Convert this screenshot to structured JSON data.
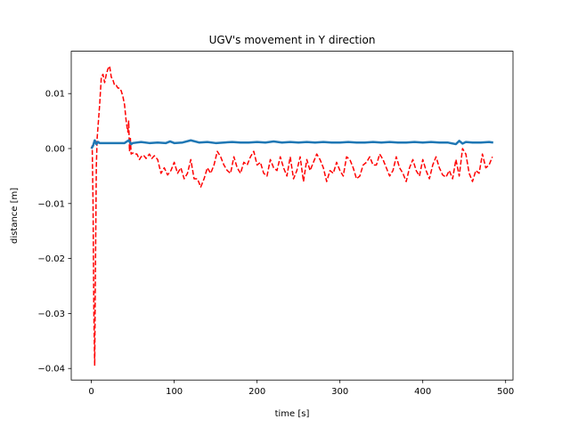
{
  "chart_data": {
    "type": "line",
    "title": "UGV's movement in Y direction",
    "xlabel": "time [s]",
    "ylabel": "distance [m]",
    "xlim": [
      -24.3,
      508.9
    ],
    "ylim": [
      -0.0421,
      0.0177
    ],
    "grid": false,
    "x_ticks": [
      0,
      100,
      200,
      300,
      400,
      500
    ],
    "y_ticks": [
      -0.04,
      -0.03,
      -0.02,
      -0.01,
      0.0,
      0.01
    ],
    "x_tick_labels": [
      "0",
      "100",
      "200",
      "300",
      "400",
      "500"
    ],
    "y_tick_labels": [
      "−0.04",
      "−0.03",
      "−0.02",
      "−0.01",
      "0.00",
      "0.01"
    ],
    "series": [
      {
        "color": "#ff0000",
        "style": "dashed",
        "x": [
          0,
          1,
          2,
          3,
          4,
          5,
          6,
          7,
          8,
          9,
          10,
          12,
          14,
          16,
          18,
          20,
          22,
          24,
          26,
          28,
          30,
          32,
          34,
          36,
          38,
          40,
          42,
          44,
          45,
          46,
          47,
          48,
          50,
          52,
          55,
          58,
          60,
          63,
          66,
          70,
          73,
          76,
          80,
          84,
          88,
          92,
          96,
          100,
          104,
          108,
          112,
          116,
          120,
          124,
          128,
          132,
          136,
          140,
          144,
          148,
          152,
          156,
          160,
          164,
          168,
          172,
          176,
          180,
          184,
          188,
          192,
          196,
          200,
          204,
          208,
          212,
          216,
          220,
          224,
          228,
          232,
          236,
          240,
          244,
          248,
          252,
          256,
          260,
          264,
          268,
          272,
          276,
          280,
          284,
          288,
          292,
          296,
          300,
          304,
          308,
          312,
          316,
          320,
          324,
          328,
          332,
          336,
          340,
          344,
          348,
          352,
          356,
          360,
          364,
          368,
          372,
          376,
          380,
          384,
          388,
          392,
          396,
          400,
          404,
          408,
          412,
          416,
          420,
          424,
          428,
          432,
          436,
          440,
          444,
          448,
          452,
          456,
          460,
          464,
          468,
          472,
          476,
          480,
          484
        ],
        "y": [
          0.0,
          0.0005,
          -0.01,
          -0.03,
          -0.0395,
          -0.02,
          -0.003,
          0.002,
          0.004,
          0.006,
          0.008,
          0.013,
          0.0135,
          0.012,
          0.0135,
          0.0145,
          0.015,
          0.013,
          0.0125,
          0.0115,
          0.0115,
          0.011,
          0.011,
          0.0105,
          0.0095,
          0.008,
          0.005,
          0.003,
          0.005,
          -0.0005,
          0.002,
          -0.001,
          -0.0008,
          -0.001,
          -0.001,
          -0.002,
          -0.0015,
          -0.0012,
          -0.0018,
          -0.001,
          -0.0018,
          -0.0013,
          -0.002,
          -0.0045,
          -0.0035,
          -0.0048,
          -0.004,
          -0.0025,
          -0.0045,
          -0.0035,
          -0.0055,
          -0.0045,
          -0.002,
          -0.0055,
          -0.0055,
          -0.007,
          -0.0055,
          -0.0035,
          -0.0045,
          -0.003,
          -0.0005,
          -0.0015,
          -0.003,
          -0.004,
          -0.0045,
          -0.0015,
          -0.0035,
          -0.0045,
          -0.0025,
          -0.003,
          -0.0015,
          -0.0005,
          -0.003,
          -0.0025,
          -0.0045,
          -0.005,
          -0.002,
          -0.0035,
          -0.004,
          -0.0015,
          -0.0035,
          -0.005,
          -0.0015,
          -0.0055,
          -0.004,
          -0.0015,
          -0.006,
          -0.002,
          -0.004,
          -0.0025,
          -0.001,
          -0.002,
          -0.0035,
          -0.006,
          -0.004,
          -0.0045,
          -0.0025,
          -0.004,
          -0.005,
          -0.0015,
          -0.002,
          -0.0035,
          -0.0055,
          -0.005,
          -0.003,
          -0.0025,
          -0.0015,
          -0.003,
          -0.003,
          -0.001,
          -0.002,
          -0.0035,
          -0.005,
          -0.004,
          -0.0015,
          -0.0035,
          -0.0045,
          -0.006,
          -0.0035,
          -0.002,
          -0.004,
          -0.005,
          -0.002,
          -0.004,
          -0.0055,
          -0.003,
          -0.0015,
          -0.0035,
          -0.0048,
          -0.0052,
          -0.004,
          -0.0055,
          -0.002,
          -0.005,
          0.0,
          -0.001,
          -0.0045,
          -0.006,
          -0.004,
          -0.0045,
          -0.001,
          -0.0035,
          -0.003,
          -0.0015
        ]
      },
      {
        "color": "#1f77b4",
        "style": "solid",
        "x": [
          0,
          2,
          3,
          4,
          5,
          6,
          7,
          8,
          10,
          15,
          20,
          30,
          40,
          45,
          48,
          50,
          60,
          70,
          80,
          90,
          95,
          100,
          110,
          120,
          130,
          140,
          150,
          160,
          170,
          180,
          190,
          200,
          210,
          220,
          230,
          240,
          250,
          260,
          270,
          280,
          290,
          300,
          310,
          320,
          330,
          340,
          350,
          360,
          370,
          380,
          390,
          400,
          410,
          420,
          430,
          440,
          444,
          448,
          452,
          460,
          470,
          480,
          485
        ],
        "y": [
          0.0,
          0.0005,
          0.001,
          0.0015,
          0.0012,
          0.0008,
          0.001,
          0.0012,
          0.001,
          0.001,
          0.001,
          0.001,
          0.001,
          0.0015,
          0.0008,
          0.001,
          0.0012,
          0.001,
          0.0011,
          0.001,
          0.0013,
          0.001,
          0.0011,
          0.0015,
          0.0011,
          0.0012,
          0.001,
          0.0011,
          0.0012,
          0.0011,
          0.0011,
          0.0012,
          0.0011,
          0.0013,
          0.0011,
          0.0012,
          0.0011,
          0.0012,
          0.0011,
          0.0012,
          0.0011,
          0.0011,
          0.0012,
          0.0011,
          0.0011,
          0.0012,
          0.0011,
          0.0012,
          0.0011,
          0.0011,
          0.0012,
          0.0011,
          0.0012,
          0.0011,
          0.0011,
          0.0008,
          0.0014,
          0.0009,
          0.0012,
          0.0011,
          0.0011,
          0.0012,
          0.0011
        ]
      }
    ]
  }
}
